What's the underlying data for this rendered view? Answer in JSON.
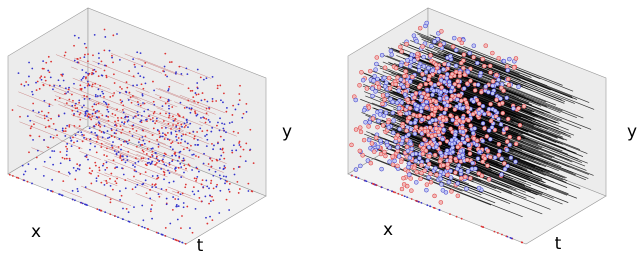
{
  "panels": [
    {
      "x_label": "x",
      "t_label": "t",
      "y_label": "y"
    },
    {
      "x_label": "x",
      "t_label": "t",
      "y_label": "y"
    }
  ]
}
